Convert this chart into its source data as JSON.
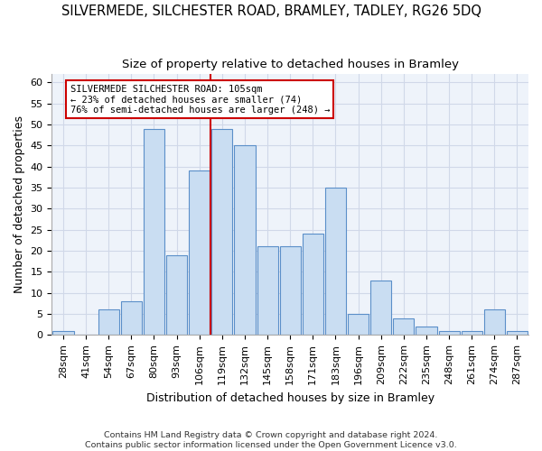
{
  "title": "SILVERMEDE, SILCHESTER ROAD, BRAMLEY, TADLEY, RG26 5DQ",
  "subtitle": "Size of property relative to detached houses in Bramley",
  "xlabel": "Distribution of detached houses by size in Bramley",
  "ylabel": "Number of detached properties",
  "footer_line1": "Contains HM Land Registry data © Crown copyright and database right 2024.",
  "footer_line2": "Contains public sector information licensed under the Open Government Licence v3.0.",
  "bar_labels": [
    "28sqm",
    "41sqm",
    "54sqm",
    "67sqm",
    "80sqm",
    "93sqm",
    "106sqm",
    "119sqm",
    "132sqm",
    "145sqm",
    "158sqm",
    "171sqm",
    "183sqm",
    "196sqm",
    "209sqm",
    "222sqm",
    "235sqm",
    "248sqm",
    "261sqm",
    "274sqm",
    "287sqm"
  ],
  "bar_values": [
    1,
    0,
    6,
    8,
    49,
    19,
    39,
    49,
    45,
    21,
    21,
    24,
    35,
    5,
    13,
    4,
    2,
    1,
    1,
    6,
    1
  ],
  "bar_color": "#c9ddf2",
  "bar_edge_color": "#5b8fc9",
  "highlight_line_color": "#cc0000",
  "highlight_idx": 6,
  "annotation_text": "SILVERMEDE SILCHESTER ROAD: 105sqm\n← 23% of detached houses are smaller (74)\n76% of semi-detached houses are larger (248) →",
  "annotation_box_color": "#ffffff",
  "annotation_box_edge_color": "#cc0000",
  "ylim": [
    0,
    62
  ],
  "yticks": [
    0,
    5,
    10,
    15,
    20,
    25,
    30,
    35,
    40,
    45,
    50,
    55,
    60
  ],
  "grid_color": "#d0d8e8",
  "bg_color": "#ffffff",
  "plot_bg_color": "#eef3fa",
  "title_fontsize": 10.5,
  "subtitle_fontsize": 9.5,
  "axis_label_fontsize": 9,
  "tick_fontsize": 8,
  "footer_fontsize": 6.8
}
